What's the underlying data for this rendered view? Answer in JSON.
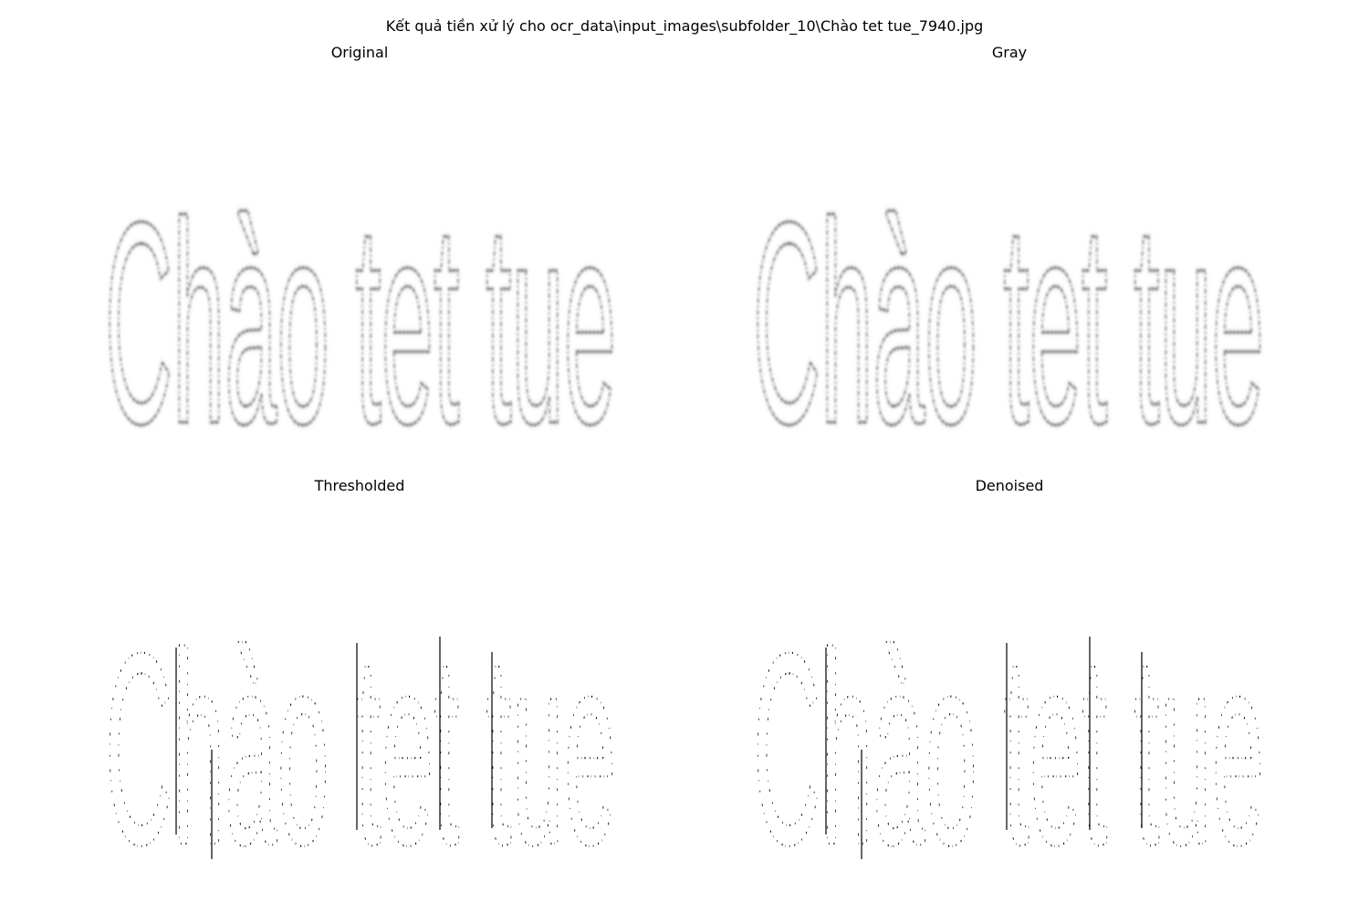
{
  "figure": {
    "title": "Kết quả tiền xử lý cho ocr_data\\input_images\\subfolder_10\\Chào tet tue_7940.jpg",
    "panels": [
      {
        "title": "Original"
      },
      {
        "title": "Gray"
      },
      {
        "title": "Thresholded"
      },
      {
        "title": "Denoised"
      }
    ],
    "image_text": "Chào tet tue"
  },
  "colors": {
    "background": "#ffffff",
    "ink_soft": "#3a3a3a",
    "ink_hard": "#000000"
  }
}
